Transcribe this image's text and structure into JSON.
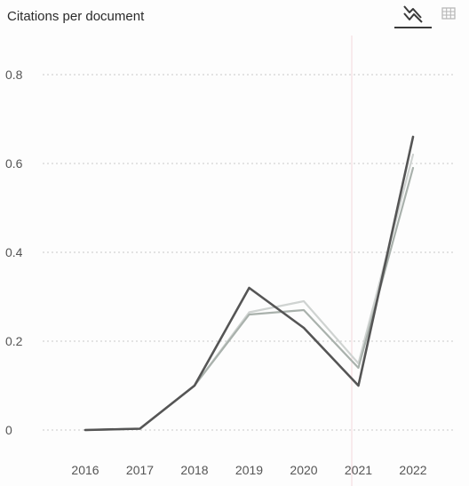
{
  "header": {
    "title": "Citations per document",
    "chart_view_icon": "line-chart-icon",
    "table_view_icon": "table-grid-icon"
  },
  "colors": {
    "series_dark": "#555555",
    "series_mid": "#a9b1ac",
    "series_light": "#cfd3d1",
    "grid": "#c9c9c9",
    "axis_text": "#555555",
    "accent_line": "#f4d6da"
  },
  "chart_data": {
    "type": "line",
    "title": "Citations per document",
    "xlabel": "",
    "ylabel": "",
    "categories": [
      "2016",
      "2017",
      "2018",
      "2019",
      "2020",
      "2021",
      "2022"
    ],
    "yticks": [
      "0",
      "0.2",
      "0.4",
      "0.6",
      "0.8"
    ],
    "ylim": [
      0,
      0.8
    ],
    "grid": true,
    "series": [
      {
        "color": "#555555",
        "values": [
          0,
          0.003,
          0.1,
          0.32,
          0.23,
          0.1,
          0.66
        ]
      },
      {
        "color": "#a9b1ac",
        "values": [
          0,
          0.003,
          0.1,
          0.26,
          0.27,
          0.14,
          0.59
        ]
      },
      {
        "color": "#cfd3d1",
        "values": [
          0,
          0.003,
          0.1,
          0.265,
          0.29,
          0.15,
          0.62
        ]
      }
    ]
  }
}
